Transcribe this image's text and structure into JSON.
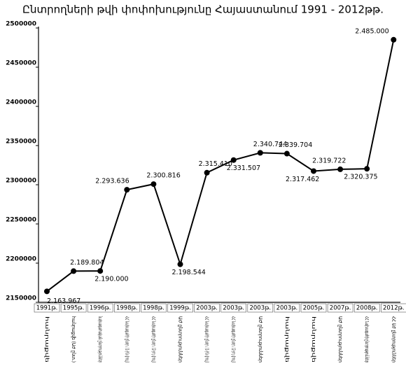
{
  "chart_data": {
    "type": "line",
    "title": "Ընտրողների թվի փոփոխությունը Հայաստանում 1991 - 2012թթ.",
    "categories": [
      "1991թ.",
      "1995թ.",
      "1996թ.",
      "1998թ.",
      "1998թ.",
      "1999թ.",
      "2003թ.",
      "2003թ.",
      "2003թ.",
      "2003թ.",
      "2005թ.",
      "2007թ.",
      "2008թ.",
      "2012թ."
    ],
    "category_descriptions": [
      "հանրաքվե",
      "հանրաքվե (ԱԺ ընտ.)",
      "նախագահական ընտրություններ",
      "ՀՀ Նախագահի ընտր. (1-ին փուլ)",
      "ՀՀ Նախագահի ընտր. (2-րդ փուլ)",
      "ԱԺ ընտրություններ",
      "ՀՀ Նախագահի ընտր. (1-ին փուլ)",
      "ՀՀ Նախագահի ընտր. (2-րդ փուլ)",
      "ԱԺ ընտրություններ",
      "հանրաքվե",
      "հանրաքվե",
      "ԱԺ ընտրություններ",
      "ՀՀ Նախագահի ընտրություններ",
      "ՀՀ ԱԺ ընտրություններ"
    ],
    "values": [
      2163967,
      2189804,
      2190000,
      2293636,
      2300816,
      2198544,
      2315410,
      2331507,
      2340744,
      2339704,
      2317462,
      2319722,
      2320375,
      2485000
    ],
    "value_labels": [
      "2.163.967",
      "2.189.804",
      "2.190.000",
      "2.293.636",
      "2.300.816",
      "2.198.544",
      "2.315.410",
      "2.331.507",
      "2.340.744",
      "2.339.704",
      "2.317.462",
      "2.319.722",
      "2.320.375",
      "2.485.000"
    ],
    "color": "#000000",
    "ylim": [
      2150000,
      2500000
    ],
    "yticks": [
      2150000,
      2200000,
      2250000,
      2300000,
      2350000,
      2400000,
      2450000,
      2500000
    ],
    "grid": false
  }
}
